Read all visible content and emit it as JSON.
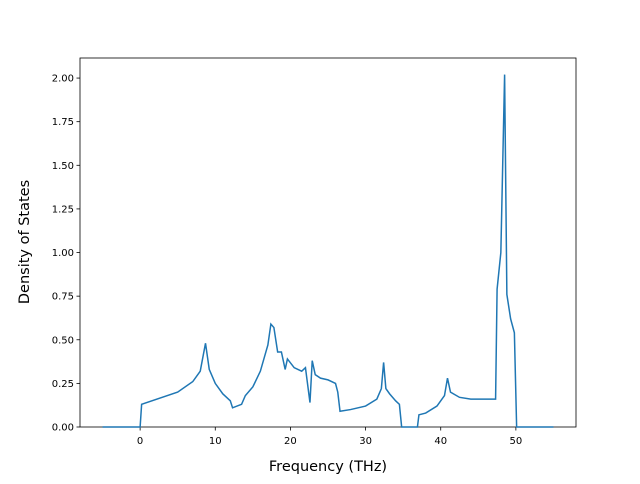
{
  "chart_data": {
    "type": "line",
    "x_label": "Frequency (THz)",
    "y_label": "Density of States",
    "x": [
      -5,
      0,
      0.2,
      5,
      7,
      8,
      8.7,
      9.2,
      10,
      11,
      12,
      12.3,
      13.5,
      14,
      15,
      16,
      17,
      17.4,
      17.8,
      18.3,
      18.8,
      19.3,
      19.6,
      20.5,
      21.5,
      22,
      22.6,
      22.9,
      23.3,
      24,
      25,
      26,
      26.3,
      26.6,
      28,
      30,
      31.5,
      32.1,
      32.4,
      32.7,
      33.2,
      34,
      34.5,
      34.8,
      36.9,
      37.1,
      38,
      39.5,
      40.5,
      40.9,
      41.3,
      42.5,
      44,
      47,
      47.3,
      47.5,
      48,
      48.5,
      48.8,
      49.3,
      49.8,
      50.1,
      55
    ],
    "series": [
      {
        "name": "DOS",
        "color": "#1f77b4",
        "values": [
          0,
          0,
          0.13,
          0.2,
          0.26,
          0.32,
          0.48,
          0.33,
          0.25,
          0.19,
          0.15,
          0.11,
          0.13,
          0.18,
          0.23,
          0.32,
          0.47,
          0.59,
          0.57,
          0.43,
          0.43,
          0.33,
          0.39,
          0.34,
          0.32,
          0.34,
          0.14,
          0.38,
          0.3,
          0.28,
          0.27,
          0.25,
          0.2,
          0.09,
          0.1,
          0.12,
          0.16,
          0.22,
          0.37,
          0.22,
          0.19,
          0.15,
          0.13,
          0,
          0,
          0.07,
          0.08,
          0.12,
          0.18,
          0.28,
          0.2,
          0.17,
          0.16,
          0.16,
          0.16,
          0.79,
          1.0,
          2.02,
          0.76,
          0.62,
          0.54,
          0,
          0
        ]
      }
    ],
    "xlim": [
      -8,
      58
    ],
    "ylim": [
      0,
      2.115
    ],
    "xticks": [
      0,
      10,
      20,
      30,
      40,
      50
    ],
    "yticks": [
      {
        "value": 0,
        "label": "0.00"
      },
      {
        "value": 0.25,
        "label": "0.25"
      },
      {
        "value": 0.5,
        "label": "0.50"
      },
      {
        "value": 0.75,
        "label": "0.75"
      },
      {
        "value": 1,
        "label": "1.00"
      },
      {
        "value": 1.25,
        "label": "1.25"
      },
      {
        "value": 1.5,
        "label": "1.50"
      },
      {
        "value": 1.75,
        "label": "1.75"
      },
      {
        "value": 2,
        "label": "2.00"
      }
    ]
  }
}
